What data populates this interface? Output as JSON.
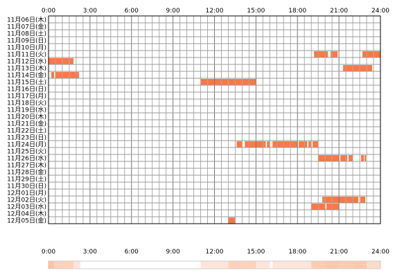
{
  "chart_data": {
    "type": "heatmap",
    "title": "",
    "xlabel": "",
    "ylabel": "",
    "xlim": [
      0,
      24
    ],
    "x_ticks": [
      "0:00",
      "3:00",
      "6:00",
      "9:00",
      "12:00",
      "15:00",
      "18:00",
      "21:00",
      "24:00"
    ],
    "grid": true,
    "colors": {
      "activity": "#ff7744",
      "grid": "#999999",
      "axis": "#000000"
    },
    "rows": [
      {
        "label": "11月06日(木)",
        "intervals": []
      },
      {
        "label": "11月07日(金)",
        "intervals": []
      },
      {
        "label": "11月08日(土)",
        "intervals": []
      },
      {
        "label": "11月09日(日)",
        "intervals": []
      },
      {
        "label": "11月10日(月)",
        "intervals": []
      },
      {
        "label": "11月11日(火)",
        "intervals": [
          [
            19.2,
            20.2
          ],
          [
            20.4,
            20.9
          ],
          [
            22.7,
            24.0
          ]
        ]
      },
      {
        "label": "11月12日(水)",
        "intervals": [
          [
            0.0,
            1.8
          ]
        ]
      },
      {
        "label": "11月13日(木)",
        "intervals": [
          [
            21.3,
            23.4
          ]
        ]
      },
      {
        "label": "11月14日(金)",
        "intervals": [
          [
            0.2,
            0.4
          ],
          [
            0.5,
            2.2
          ]
        ]
      },
      {
        "label": "11月15日(土)",
        "intervals": [
          [
            11.0,
            15.0
          ]
        ]
      },
      {
        "label": "11月16日(日)",
        "intervals": []
      },
      {
        "label": "11月17日(月)",
        "intervals": []
      },
      {
        "label": "11月18日(火)",
        "intervals": []
      },
      {
        "label": "11月19日(水)",
        "intervals": []
      },
      {
        "label": "11月20日(木)",
        "intervals": []
      },
      {
        "label": "11月21日(金)",
        "intervals": []
      },
      {
        "label": "11月22日(土)",
        "intervals": []
      },
      {
        "label": "11月23日(日)",
        "intervals": []
      },
      {
        "label": "11月24日(月)",
        "intervals": [
          [
            13.6,
            14.0
          ],
          [
            14.2,
            15.7
          ],
          [
            15.8,
            16.0
          ],
          [
            16.2,
            18.0
          ],
          [
            18.1,
            18.7
          ],
          [
            18.8,
            19.0
          ],
          [
            19.1,
            19.5
          ]
        ]
      },
      {
        "label": "11月25日(火)",
        "intervals": []
      },
      {
        "label": "11月26日(水)",
        "intervals": [
          [
            19.5,
            21.0
          ],
          [
            21.1,
            21.6
          ],
          [
            21.7,
            22.0
          ],
          [
            22.6,
            22.8
          ],
          [
            22.85,
            22.95
          ]
        ]
      },
      {
        "label": "11月27日(木)",
        "intervals": []
      },
      {
        "label": "11月28日(金)",
        "intervals": []
      },
      {
        "label": "11月29日(土)",
        "intervals": []
      },
      {
        "label": "11月30日(日)",
        "intervals": []
      },
      {
        "label": "12月01日(月)",
        "intervals": []
      },
      {
        "label": "12月02日(火)",
        "intervals": [
          [
            19.8,
            22.4
          ],
          [
            22.55,
            22.9
          ]
        ]
      },
      {
        "label": "12月03日(水)",
        "intervals": [
          [
            19.0,
            20.0
          ],
          [
            20.1,
            21.0
          ]
        ]
      },
      {
        "label": "12月04日(木)",
        "intervals": []
      },
      {
        "label": "12月05日(金)",
        "intervals": [
          [
            13.0,
            13.5
          ]
        ]
      }
    ],
    "summary_bar_segments": [
      {
        "start": 0.0,
        "end": 0.4,
        "level": 0.6
      },
      {
        "start": 0.4,
        "end": 1.8,
        "level": 0.45
      },
      {
        "start": 1.8,
        "end": 2.3,
        "level": 0.25
      },
      {
        "start": 11.0,
        "end": 13.0,
        "level": 0.25
      },
      {
        "start": 13.0,
        "end": 13.5,
        "level": 0.45
      },
      {
        "start": 13.5,
        "end": 15.0,
        "level": 0.45
      },
      {
        "start": 15.0,
        "end": 16.0,
        "level": 0.25
      },
      {
        "start": 16.2,
        "end": 19.0,
        "level": 0.25
      },
      {
        "start": 19.0,
        "end": 20.0,
        "level": 0.5
      },
      {
        "start": 20.0,
        "end": 21.0,
        "level": 0.55
      },
      {
        "start": 21.0,
        "end": 22.0,
        "level": 0.5
      },
      {
        "start": 22.0,
        "end": 23.0,
        "level": 0.55
      },
      {
        "start": 23.0,
        "end": 24.0,
        "level": 0.35
      }
    ]
  }
}
